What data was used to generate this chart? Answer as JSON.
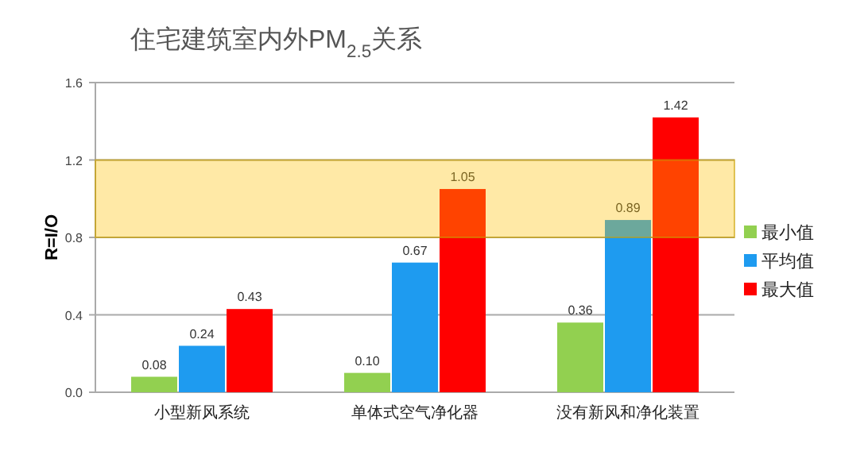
{
  "chart_data": {
    "type": "bar",
    "title": "住宅建筑室内外PM$_{2.5}$关系",
    "ylabel": "R=I/O",
    "categories": [
      "小型新风系统",
      "单体式空气净化器",
      "没有新风和净化装置"
    ],
    "series": [
      {
        "name": "最小值",
        "color": "#92d050",
        "values": [
          0.08,
          0.1,
          0.36
        ],
        "value_labels": [
          "0.08",
          "0.10",
          "0.36"
        ]
      },
      {
        "name": "平均值",
        "color": "#1e9bf0",
        "values": [
          0.24,
          0.67,
          0.89
        ],
        "value_labels": [
          "0.24",
          "0.67",
          "0.89"
        ]
      },
      {
        "name": "最大值",
        "color": "#ff0000",
        "values": [
          0.43,
          1.05,
          1.42
        ],
        "value_labels": [
          "0.43",
          "1.05",
          "1.42"
        ]
      }
    ],
    "ylim": [
      0,
      1.6
    ],
    "yticks": [
      {
        "value": 0,
        "label": "0.0"
      },
      {
        "value": 0.4,
        "label": "0.4"
      },
      {
        "value": 0.8,
        "label": "0.8"
      },
      {
        "value": 1.2,
        "label": "1.2"
      },
      {
        "value": 1.6,
        "label": "1.6"
      }
    ],
    "bands": [
      {
        "axis": "y",
        "from": 0.8,
        "to": 1.2,
        "color": "#ffc000"
      }
    ],
    "grid": "y",
    "legend": "right"
  }
}
